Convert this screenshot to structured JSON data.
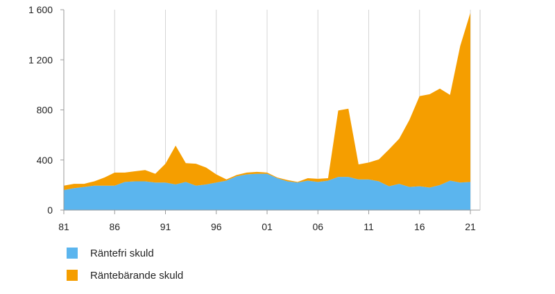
{
  "chart_data": {
    "type": "area",
    "stacked": true,
    "x": [
      1981,
      1982,
      1983,
      1984,
      1985,
      1986,
      1987,
      1988,
      1989,
      1990,
      1991,
      1992,
      1993,
      1994,
      1995,
      1996,
      1997,
      1998,
      1999,
      2000,
      2001,
      2002,
      2003,
      2004,
      2005,
      2006,
      2007,
      2008,
      2009,
      2010,
      2011,
      2012,
      2013,
      2014,
      2015,
      2016,
      2017,
      2018,
      2019,
      2020,
      2021
    ],
    "series": [
      {
        "name": "Räntefri skuld",
        "color": "#5BB5EE",
        "values": [
          160,
          175,
          185,
          195,
          195,
          195,
          225,
          230,
          230,
          220,
          220,
          205,
          225,
          195,
          205,
          220,
          235,
          270,
          285,
          290,
          290,
          255,
          230,
          220,
          235,
          225,
          235,
          265,
          265,
          245,
          245,
          230,
          190,
          210,
          185,
          190,
          180,
          200,
          235,
          220,
          225
        ]
      },
      {
        "name": "Räntebärande skuld",
        "color": "#F59E00",
        "values": [
          35,
          35,
          25,
          35,
          65,
          105,
          75,
          80,
          90,
          70,
          150,
          310,
          150,
          175,
          135,
          65,
          10,
          10,
          15,
          15,
          10,
          5,
          10,
          5,
          20,
          25,
          20,
          530,
          545,
          120,
          135,
          175,
          295,
          360,
          535,
          720,
          745,
          770,
          685,
          1090,
          1350
        ]
      }
    ],
    "x_ticks": [
      "81",
      "86",
      "91",
      "96",
      "01",
      "06",
      "11",
      "16",
      "21"
    ],
    "y_ticks": [
      "0",
      "400",
      "800",
      "1 200",
      "1 600"
    ],
    "ylim": [
      0,
      1600
    ],
    "grid": "vertical",
    "legend_position": "bottom-left"
  }
}
